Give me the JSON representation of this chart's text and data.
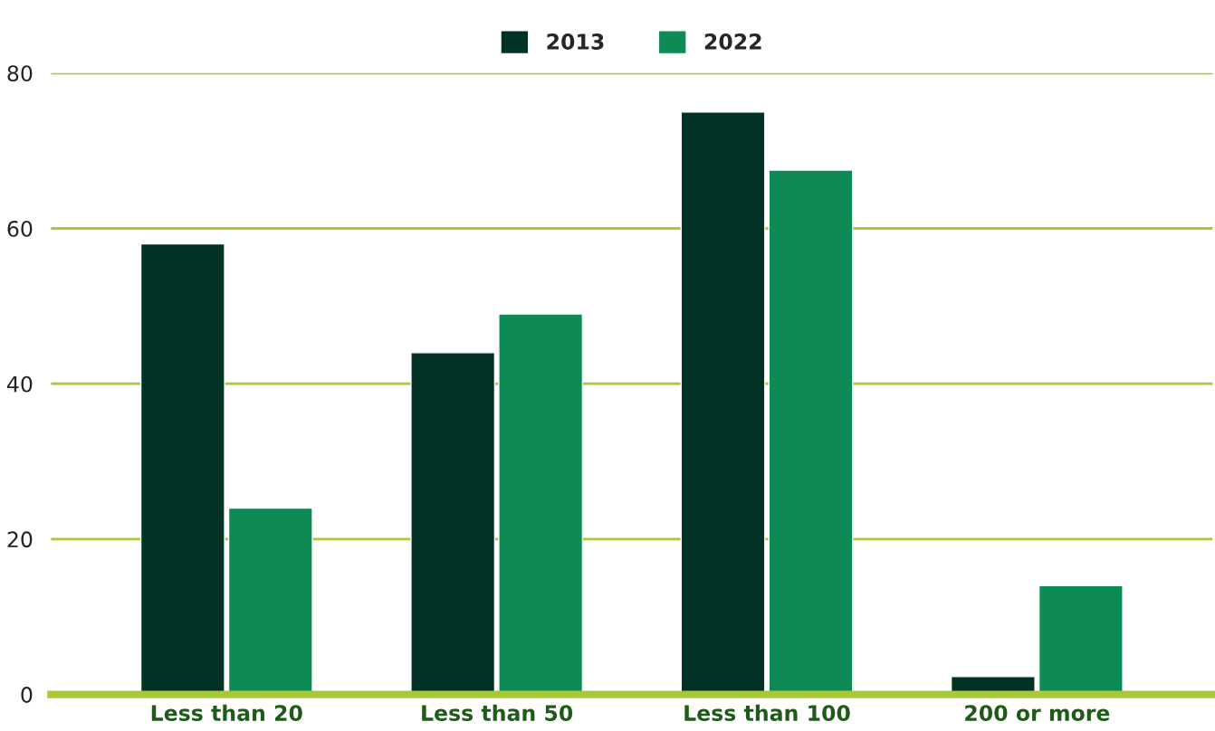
{
  "chart_data": {
    "type": "bar",
    "categories": [
      "Less than 20",
      "Less than 50",
      "Less than 100",
      "200 or more"
    ],
    "series": [
      {
        "name": "2013",
        "color": "#023125",
        "values": [
          58,
          44,
          75,
          2.3
        ]
      },
      {
        "name": "2022",
        "color": "#0e8a55",
        "values": [
          24,
          49,
          67.5,
          14
        ]
      }
    ],
    "ylim": [
      0,
      80
    ],
    "yticks": [
      0,
      20,
      40,
      60,
      80
    ],
    "grid": "y",
    "legend": "top"
  }
}
